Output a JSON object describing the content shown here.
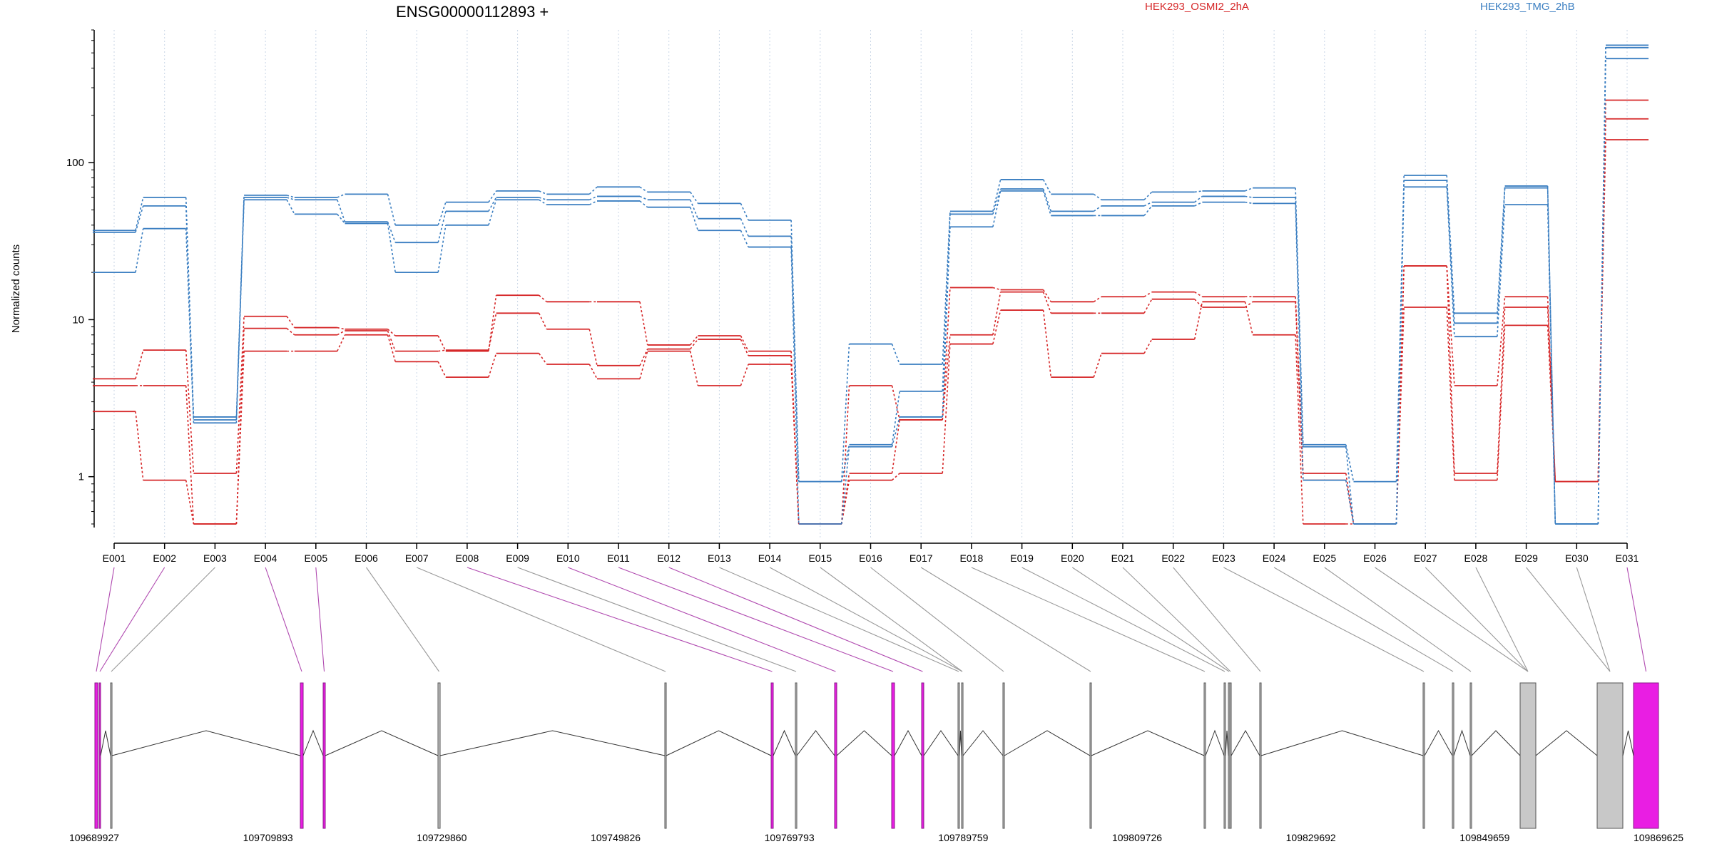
{
  "chart_data": {
    "type": "line",
    "title": "ENSG00000112893 +",
    "ylabel": "Normalized counts",
    "yscale": "log",
    "ylim": [
      0.5,
      700
    ],
    "y_ticks": [
      1,
      10,
      100
    ],
    "y_tick_labels": [
      "1",
      "10",
      "100"
    ],
    "grid": "vertical dotted lines at each exon",
    "legend_placement": "top",
    "categories": [
      "E001",
      "E002",
      "E003",
      "E004",
      "E005",
      "E006",
      "E007",
      "E008",
      "E009",
      "E010",
      "E011",
      "E012",
      "E013",
      "E014",
      "E015",
      "E016",
      "E017",
      "E018",
      "E019",
      "E020",
      "E021",
      "E022",
      "E023",
      "E024",
      "E025",
      "E026",
      "E027",
      "E028",
      "E029",
      "E030",
      "E031"
    ],
    "groups": [
      {
        "label": "HEK293_OSMI2_2hA",
        "color": "#d62728",
        "series": [
          {
            "values": [
              4.2,
              6.4,
              1.05,
              10.5,
              8.9,
              8.7,
              7.9,
              6.3,
              14.3,
              13.0,
              13.0,
              6.9,
              7.9,
              6.3,
              0.5,
              3.8,
              2.3,
              16.0,
              15.5,
              13.0,
              14.0,
              15.0,
              14.0,
              14.0,
              1.05,
              0.5,
              22.0,
              3.8,
              14.0,
              0.93,
              250
            ]
          },
          {
            "values": [
              3.8,
              3.8,
              0.5,
              8.8,
              8.0,
              8.5,
              6.3,
              6.4,
              11.0,
              8.7,
              5.1,
              6.5,
              7.5,
              5.9,
              0.5,
              1.05,
              2.3,
              8.0,
              15.0,
              11.0,
              11.0,
              13.5,
              12.0,
              13.0,
              0.95,
              0.5,
              22.0,
              1.05,
              12.0,
              0.93,
              190
            ]
          },
          {
            "values": [
              2.6,
              0.95,
              0.5,
              6.3,
              6.3,
              8.0,
              5.4,
              4.3,
              6.1,
              5.2,
              4.2,
              6.3,
              3.8,
              5.2,
              0.5,
              0.95,
              1.05,
              7.0,
              11.5,
              4.3,
              6.1,
              7.5,
              13.0,
              8.0,
              0.5,
              0.5,
              12.0,
              0.95,
              9.2,
              0.93,
              140
            ]
          }
        ]
      },
      {
        "label": "HEK293_TMG_2hB",
        "color": "#3a7ec1",
        "series": [
          {
            "values": [
              37,
              60,
              2.4,
              62,
              60,
              63,
              40,
              56,
              66,
              63,
              70,
              65,
              55,
              43,
              0.93,
              7.0,
              5.2,
              49,
              78,
              63,
              58,
              65,
              66,
              69,
              1.6,
              0.93,
              83,
              11,
              71,
              0.5,
              560
            ]
          },
          {
            "values": [
              36,
              53,
              2.3,
              60,
              58,
              42,
              31,
              49,
              60,
              58,
              61,
              58,
              44,
              34,
              0.93,
              1.6,
              3.5,
              47,
              68,
              49,
              53,
              56,
              61,
              60,
              1.55,
              0.5,
              77,
              9.5,
              69,
              0.5,
              540
            ]
          },
          {
            "values": [
              20,
              38,
              2.2,
              58,
              47,
              41,
              20,
              40,
              58,
              54,
              57,
              52,
              37,
              29,
              0.5,
              1.55,
              2.4,
              39,
              66,
              46,
              46,
              53,
              56,
              55,
              0.95,
              0.5,
              70,
              7.8,
              54,
              0.5,
              460
            ]
          }
        ]
      }
    ],
    "exon_model": {
      "coordinate_ticks": [
        "109689927",
        "109709893",
        "109729860",
        "109749826",
        "109769793",
        "109789759",
        "109809726",
        "109829692",
        "109849659",
        "109869625"
      ],
      "highlight_color": "#e91ee3",
      "normal_color": "#c8c8c8"
    }
  }
}
